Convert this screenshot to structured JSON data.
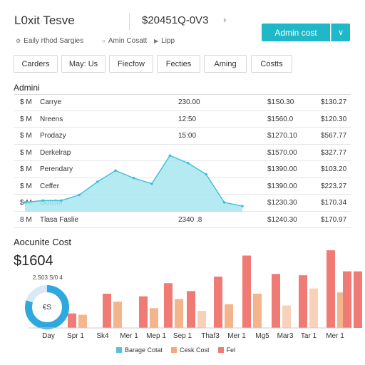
{
  "header": {
    "app_title": "L0xit Tesve",
    "code": "$20451Q-0V3",
    "chevron_icon": "chevron-right-icon",
    "primary_button": "Admin cost",
    "primary_caret_icon": "chevron-down-icon"
  },
  "subheader": {
    "left_icon": "gear-icon",
    "left_text": "Eaily rthod Sargies",
    "mid_icon": "circle-icon",
    "mid_text": "Amin Cosatt",
    "right_icon": "tag-icon",
    "right_text": "Lipp"
  },
  "filters": [
    "Carders",
    "May: Us",
    "Fiecfow",
    "Fecties",
    "Aming",
    "Costts"
  ],
  "admin_section": {
    "title": "Admini",
    "rows": [
      {
        "cur": "$ M",
        "name": "Carrye",
        "qty": "230.00",
        "a": "$1S0.30",
        "b": "$130.27"
      },
      {
        "cur": "$ M",
        "name": "Nreens",
        "qty": "12:50",
        "a": "$1560.0",
        "b": "$120.30"
      },
      {
        "cur": "$ M",
        "name": "Prodazy",
        "qty": "15:00",
        "a": "$1270.10",
        "b": "$567.77"
      },
      {
        "cur": "$ M",
        "name": "Derkelrap",
        "qty": "",
        "a": "$1570.00",
        "b": "$327.77"
      },
      {
        "cur": "$ M",
        "name": "Perendary",
        "qty": "",
        "a": "$1390.00",
        "b": "$103.20"
      },
      {
        "cur": "$ M",
        "name": "Ceffer",
        "qty": "",
        "a": "$1390.00",
        "b": "$223.27"
      },
      {
        "cur": "$ M",
        "name": "Outcinl",
        "qty": "",
        "a": "$1230.30",
        "b": "$170.34"
      },
      {
        "cur": "8 M",
        "name": "Tlasa Faslie",
        "qty": "2340 .8",
        "a": "$1240.30",
        "b": "$170.97"
      }
    ]
  },
  "area_chart": {
    "values": [
      5,
      6,
      6,
      9,
      16,
      22,
      18,
      15,
      30,
      26,
      20,
      5,
      3
    ],
    "ylim": [
      0,
      32
    ],
    "fill_color": "#a8e6f0",
    "line_color": "#3cbfd6"
  },
  "cost_section": {
    "title": "Aocunite Cost",
    "total": "$1604",
    "donut_label": "2.S03 S/0 4",
    "donut_center": "€S",
    "donut_fraction": 0.8,
    "donut_color": "#2fa8e0",
    "donut_track": "#d9e9f3"
  },
  "chart_data": {
    "type": "bar",
    "categories": [
      "Day",
      "Spr 1",
      "Sk4",
      "Mer 1",
      "Mep 1",
      "Sep 1",
      "Thaf3",
      "Mer 1",
      "Mg5",
      "Mar3",
      "Tar 1",
      "Mer 1"
    ],
    "series": [
      {
        "name": "Barage Cotat",
        "color": "#5bbfe0",
        "values": [
          0,
          0,
          0,
          0,
          0,
          0,
          0,
          0,
          0,
          0,
          0,
          0
        ]
      },
      {
        "name": "Cesk Cost",
        "color": "#f5a87c",
        "values": [
          0,
          0,
          0,
          0,
          0,
          0,
          0,
          0,
          0,
          0,
          0,
          0
        ]
      },
      {
        "name": "Fel",
        "color": "#f07a74",
        "values": [
          0,
          0,
          0,
          0,
          0,
          0,
          0,
          0,
          0,
          0,
          0,
          0
        ]
      }
    ],
    "bars": [
      {
        "category": "Spr 1",
        "values": [
          22,
          20
        ]
      },
      {
        "category": "Sk4",
        "values": [
          52,
          40
        ]
      },
      {
        "category": "Mer 1",
        "values": [
          48,
          30
        ]
      },
      {
        "category": "Mep 1",
        "values": [
          68,
          44
        ]
      },
      {
        "category": "Sep 1",
        "values": [
          56,
          26
        ]
      },
      {
        "category": "Thaf3",
        "values": [
          78,
          36
        ]
      },
      {
        "category": "Mer 1",
        "values": [
          110,
          52
        ]
      },
      {
        "category": "Mg5",
        "values": [
          82,
          34
        ]
      },
      {
        "category": "Mar3",
        "values": [
          80,
          60
        ]
      },
      {
        "category": "Tar 1",
        "values": [
          118,
          54
        ]
      },
      {
        "category": "Mer 1",
        "values": [
          86,
          86
        ]
      }
    ],
    "bar_pair_colors": [
      [
        "#f07a74",
        "#f5b58c"
      ],
      [
        "#f07a74",
        "#f5b58c"
      ],
      [
        "#f07a74",
        "#f5b58c"
      ],
      [
        "#f07a74",
        "#f5b58c"
      ],
      [
        "#f07a74",
        "#f8d2b8"
      ],
      [
        "#f07a74",
        "#f5b58c"
      ],
      [
        "#f07a74",
        "#f5b58c"
      ],
      [
        "#f07a74",
        "#f8d2b8"
      ],
      [
        "#f07a74",
        "#f8d2b8"
      ],
      [
        "#f07a74",
        "#f5b58c"
      ],
      [
        "#f07a74",
        "#f07a74"
      ]
    ],
    "ylim": [
      0,
      130
    ],
    "legend": [
      {
        "name": "Barage Cotat",
        "color": "#5bbfe0"
      },
      {
        "name": "Cesk Cost",
        "color": "#f5a87c"
      },
      {
        "name": "Fel",
        "color": "#f07a74"
      }
    ]
  }
}
